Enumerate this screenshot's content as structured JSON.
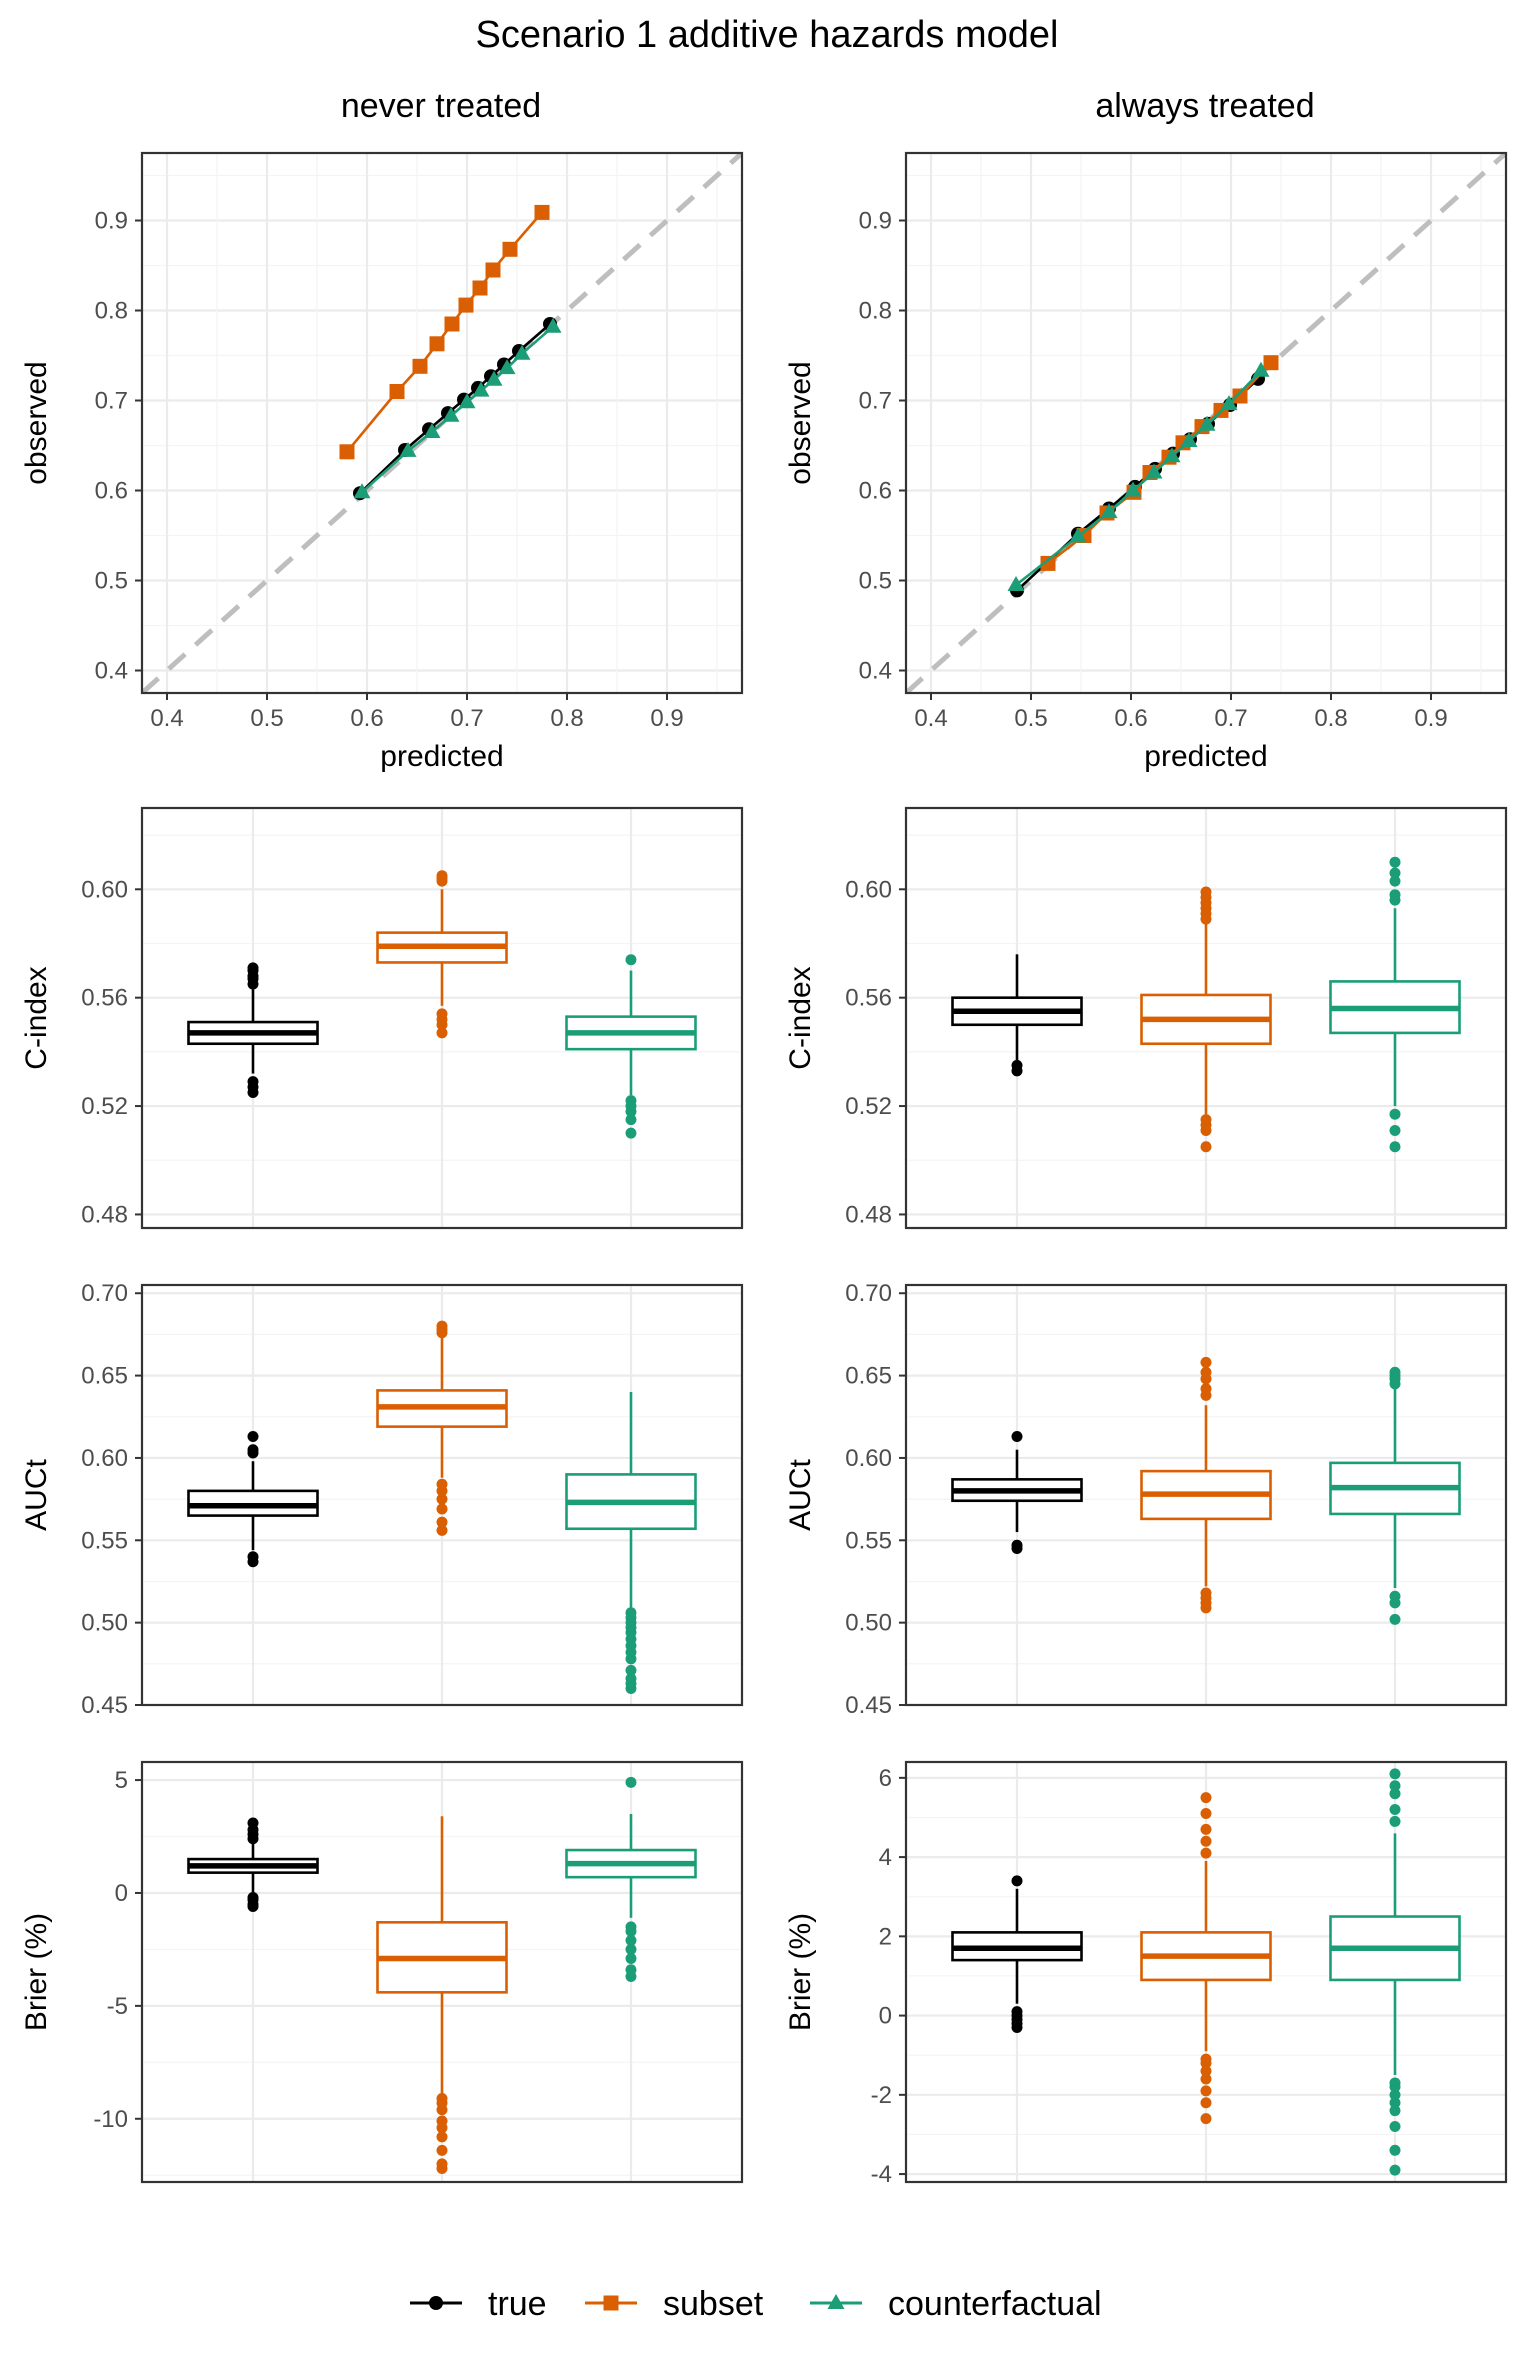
{
  "title": "Scenario 1 additive hazards model",
  "columns": [
    "never treated",
    "always treated"
  ],
  "colors": {
    "true": "#000000",
    "subset": "#D95F02",
    "counterfactual": "#1B9E77",
    "reference_line": "#BEBEBE",
    "grid_major": "#EBEBEB",
    "grid_minor": "#F4F4F4"
  },
  "legend": {
    "placement": "bottom",
    "items": [
      {
        "key": "true",
        "label": "true",
        "marker": "circle"
      },
      {
        "key": "subset",
        "label": "subset",
        "marker": "square"
      },
      {
        "key": "counterfactual",
        "label": "counterfactual",
        "marker": "triangle"
      }
    ]
  },
  "chart_data": [
    {
      "type": "line",
      "row": 0,
      "col": 0,
      "column_title": "never treated",
      "xlabel": "predicted",
      "ylabel": "observed",
      "xlim": [
        0.375,
        0.975
      ],
      "ylim": [
        0.375,
        0.975
      ],
      "xticks": [
        0.4,
        0.5,
        0.6,
        0.7,
        0.8,
        0.9
      ],
      "yticks": [
        0.4,
        0.5,
        0.6,
        0.7,
        0.8,
        0.9
      ],
      "reference_line": "y = x",
      "series": [
        {
          "name": "true",
          "x": [
            0.593,
            0.638,
            0.662,
            0.681,
            0.697,
            0.711,
            0.724,
            0.737,
            0.752,
            0.783
          ],
          "y": [
            0.597,
            0.645,
            0.668,
            0.686,
            0.701,
            0.714,
            0.727,
            0.74,
            0.755,
            0.785
          ]
        },
        {
          "name": "subset",
          "x": [
            0.58,
            0.63,
            0.653,
            0.67,
            0.685,
            0.699,
            0.713,
            0.726,
            0.743,
            0.775
          ],
          "y": [
            0.643,
            0.71,
            0.738,
            0.763,
            0.785,
            0.806,
            0.825,
            0.845,
            0.868,
            0.909
          ]
        },
        {
          "name": "counterfactual",
          "x": [
            0.595,
            0.641,
            0.665,
            0.684,
            0.7,
            0.714,
            0.727,
            0.74,
            0.755,
            0.786
          ],
          "y": [
            0.598,
            0.644,
            0.665,
            0.683,
            0.698,
            0.711,
            0.723,
            0.736,
            0.752,
            0.782
          ]
        }
      ]
    },
    {
      "type": "line",
      "row": 0,
      "col": 1,
      "column_title": "always treated",
      "xlabel": "predicted",
      "ylabel": "observed",
      "xlim": [
        0.375,
        0.975
      ],
      "ylim": [
        0.375,
        0.975
      ],
      "xticks": [
        0.4,
        0.5,
        0.6,
        0.7,
        0.8,
        0.9
      ],
      "yticks": [
        0.4,
        0.5,
        0.6,
        0.7,
        0.8,
        0.9
      ],
      "reference_line": "y = x",
      "series": [
        {
          "name": "true",
          "x": [
            0.486,
            0.547,
            0.578,
            0.604,
            0.624,
            0.642,
            0.659,
            0.677,
            0.699,
            0.727
          ],
          "y": [
            0.489,
            0.552,
            0.58,
            0.604,
            0.624,
            0.641,
            0.657,
            0.674,
            0.695,
            0.724
          ]
        },
        {
          "name": "subset",
          "x": [
            0.517,
            0.553,
            0.576,
            0.603,
            0.619,
            0.638,
            0.652,
            0.671,
            0.69,
            0.709,
            0.74
          ],
          "y": [
            0.519,
            0.55,
            0.575,
            0.598,
            0.62,
            0.637,
            0.653,
            0.671,
            0.689,
            0.705,
            0.742
          ]
        },
        {
          "name": "counterfactual",
          "x": [
            0.485,
            0.547,
            0.578,
            0.602,
            0.623,
            0.641,
            0.658,
            0.676,
            0.698,
            0.73
          ],
          "y": [
            0.495,
            0.549,
            0.576,
            0.6,
            0.62,
            0.638,
            0.655,
            0.673,
            0.696,
            0.733
          ]
        }
      ]
    },
    {
      "type": "box",
      "row": 1,
      "col": 0,
      "ylabel": "C-index",
      "ylim": [
        0.475,
        0.63
      ],
      "yticks": [
        0.48,
        0.52,
        0.56,
        0.6
      ],
      "ytick_labels": [
        "0.48",
        "0.52",
        "0.56",
        "0.60"
      ],
      "boxes": [
        {
          "name": "true",
          "median": 0.547,
          "q1": 0.543,
          "q3": 0.551,
          "whisker_low": 0.532,
          "whisker_high": 0.563,
          "outliers": [
            0.525,
            0.527,
            0.529,
            0.565,
            0.567,
            0.568,
            0.57,
            0.571
          ]
        },
        {
          "name": "subset",
          "median": 0.579,
          "q1": 0.573,
          "q3": 0.584,
          "whisker_low": 0.557,
          "whisker_high": 0.6,
          "outliers": [
            0.547,
            0.55,
            0.552,
            0.554,
            0.603,
            0.604,
            0.605
          ]
        },
        {
          "name": "counterfactual",
          "median": 0.547,
          "q1": 0.541,
          "q3": 0.553,
          "whisker_low": 0.524,
          "whisker_high": 0.57,
          "outliers": [
            0.51,
            0.515,
            0.518,
            0.52,
            0.522,
            0.574
          ]
        }
      ]
    },
    {
      "type": "box",
      "row": 1,
      "col": 1,
      "ylabel": "C-index",
      "ylim": [
        0.475,
        0.63
      ],
      "yticks": [
        0.48,
        0.52,
        0.56,
        0.6
      ],
      "ytick_labels": [
        "0.48",
        "0.52",
        "0.56",
        "0.60"
      ],
      "boxes": [
        {
          "name": "true",
          "median": 0.555,
          "q1": 0.55,
          "q3": 0.56,
          "whisker_low": 0.537,
          "whisker_high": 0.576,
          "outliers": [
            0.533,
            0.535
          ]
        },
        {
          "name": "subset",
          "median": 0.552,
          "q1": 0.543,
          "q3": 0.561,
          "whisker_low": 0.517,
          "whisker_high": 0.587,
          "outliers": [
            0.505,
            0.511,
            0.513,
            0.515,
            0.589,
            0.591,
            0.593,
            0.595,
            0.597,
            0.599
          ]
        },
        {
          "name": "counterfactual",
          "median": 0.556,
          "q1": 0.547,
          "q3": 0.566,
          "whisker_low": 0.52,
          "whisker_high": 0.593,
          "outliers": [
            0.505,
            0.511,
            0.517,
            0.596,
            0.598,
            0.603,
            0.606,
            0.61
          ]
        }
      ]
    },
    {
      "type": "box",
      "row": 2,
      "col": 0,
      "ylabel": "AUCt",
      "ylim": [
        0.45,
        0.705
      ],
      "yticks": [
        0.45,
        0.5,
        0.55,
        0.6,
        0.65,
        0.7
      ],
      "ytick_labels": [
        "0.45",
        "0.50",
        "0.55",
        "0.60",
        "0.65",
        "0.70"
      ],
      "boxes": [
        {
          "name": "true",
          "median": 0.571,
          "q1": 0.565,
          "q3": 0.58,
          "whisker_low": 0.544,
          "whisker_high": 0.598,
          "outliers": [
            0.537,
            0.54,
            0.603,
            0.605,
            0.613
          ]
        },
        {
          "name": "subset",
          "median": 0.631,
          "q1": 0.619,
          "q3": 0.641,
          "whisker_low": 0.588,
          "whisker_high": 0.673,
          "outliers": [
            0.556,
            0.561,
            0.569,
            0.575,
            0.58,
            0.584,
            0.676,
            0.678,
            0.68
          ]
        },
        {
          "name": "counterfactual",
          "median": 0.573,
          "q1": 0.557,
          "q3": 0.59,
          "whisker_low": 0.507,
          "whisker_high": 0.64,
          "outliers": [
            0.46,
            0.463,
            0.466,
            0.471,
            0.478,
            0.482,
            0.486,
            0.49,
            0.494,
            0.497,
            0.5,
            0.503,
            0.506
          ]
        }
      ]
    },
    {
      "type": "box",
      "row": 2,
      "col": 1,
      "ylabel": "AUCt",
      "ylim": [
        0.45,
        0.705
      ],
      "yticks": [
        0.45,
        0.5,
        0.55,
        0.6,
        0.65,
        0.7
      ],
      "ytick_labels": [
        "0.45",
        "0.50",
        "0.55",
        "0.60",
        "0.65",
        "0.70"
      ],
      "boxes": [
        {
          "name": "true",
          "median": 0.58,
          "q1": 0.574,
          "q3": 0.587,
          "whisker_low": 0.555,
          "whisker_high": 0.605,
          "outliers": [
            0.545,
            0.547,
            0.613
          ]
        },
        {
          "name": "subset",
          "median": 0.578,
          "q1": 0.563,
          "q3": 0.592,
          "whisker_low": 0.522,
          "whisker_high": 0.632,
          "outliers": [
            0.509,
            0.512,
            0.515,
            0.518,
            0.638,
            0.642,
            0.648,
            0.652,
            0.658
          ]
        },
        {
          "name": "counterfactual",
          "median": 0.582,
          "q1": 0.566,
          "q3": 0.597,
          "whisker_low": 0.521,
          "whisker_high": 0.642,
          "outliers": [
            0.502,
            0.512,
            0.516,
            0.645,
            0.648,
            0.65,
            0.652
          ]
        }
      ]
    },
    {
      "type": "box",
      "row": 3,
      "col": 0,
      "ylabel": "Brier (%)",
      "ylim": [
        -12.8,
        5.8
      ],
      "yticks": [
        -10,
        -5,
        0,
        5
      ],
      "ytick_labels": [
        "-10",
        "-5",
        "0",
        "5"
      ],
      "boxes": [
        {
          "name": "true",
          "median": 1.2,
          "q1": 0.9,
          "q3": 1.5,
          "whisker_low": -0.1,
          "whisker_high": 2.3,
          "outliers": [
            -0.6,
            -0.5,
            -0.3,
            -0.2,
            2.4,
            2.6,
            2.8,
            3.1
          ]
        },
        {
          "name": "subset",
          "median": -2.9,
          "q1": -4.4,
          "q3": -1.3,
          "whisker_low": -8.9,
          "whisker_high": 3.4,
          "outliers": [
            -12.2,
            -12.0,
            -11.4,
            -10.8,
            -10.4,
            -10.1,
            -9.6,
            -9.3,
            -9.1
          ]
        },
        {
          "name": "counterfactual",
          "median": 1.3,
          "q1": 0.7,
          "q3": 1.9,
          "whisker_low": -1.1,
          "whisker_high": 3.5,
          "outliers": [
            -3.7,
            -3.4,
            -2.9,
            -2.5,
            -2.1,
            -1.7,
            -1.5,
            4.9
          ]
        }
      ]
    },
    {
      "type": "box",
      "row": 3,
      "col": 1,
      "ylabel": "Brier (%)",
      "ylim": [
        -4.2,
        6.4
      ],
      "yticks": [
        -4,
        -2,
        0,
        2,
        4,
        6
      ],
      "ytick_labels": [
        "-4",
        "-2",
        "0",
        "2",
        "4",
        "6"
      ],
      "boxes": [
        {
          "name": "true",
          "median": 1.7,
          "q1": 1.4,
          "q3": 2.1,
          "whisker_low": 0.3,
          "whisker_high": 3.2,
          "outliers": [
            -0.3,
            -0.2,
            -0.1,
            0.0,
            0.1,
            3.4
          ]
        },
        {
          "name": "subset",
          "median": 1.5,
          "q1": 0.9,
          "q3": 2.1,
          "whisker_low": -0.9,
          "whisker_high": 3.9,
          "outliers": [
            -2.6,
            -2.2,
            -1.9,
            -1.6,
            -1.4,
            -1.2,
            -1.1,
            4.1,
            4.4,
            4.7,
            5.1,
            5.5
          ]
        },
        {
          "name": "counterfactual",
          "median": 1.7,
          "q1": 0.9,
          "q3": 2.5,
          "whisker_low": -1.5,
          "whisker_high": 4.6,
          "outliers": [
            -3.9,
            -3.4,
            -2.8,
            -2.4,
            -2.2,
            -2.0,
            -1.8,
            -1.7,
            4.9,
            5.2,
            5.6,
            5.8,
            6.1
          ]
        }
      ]
    }
  ]
}
